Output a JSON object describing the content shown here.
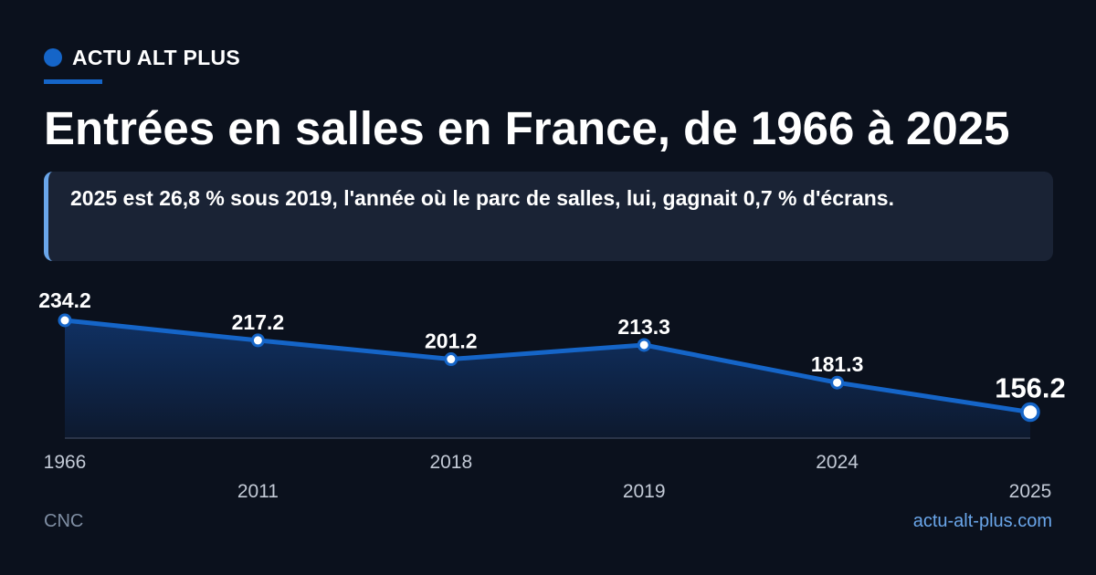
{
  "brand": {
    "name": "ACTU ALT PLUS",
    "accent": "#1565c8"
  },
  "title": "Entrées en salles en France, de 1966 à 2025",
  "callout": "2025 est 26,8 % sous 2019, l'année où le parc de salles, lui, gagnait 0,7 % d'écrans.",
  "footer": {
    "source": "CNC",
    "site": "actu-alt-plus.com"
  },
  "chart_data": {
    "type": "area",
    "categories": [
      "1966",
      "2011",
      "2018",
      "2019",
      "2024",
      "2025"
    ],
    "values": [
      234.2,
      217.2,
      201.2,
      213.3,
      181.3,
      156.2
    ],
    "data_labels": [
      "234.2",
      "217.2",
      "201.2",
      "213.3",
      "181.3",
      "156.2"
    ],
    "highlight_index": 5,
    "ylim": [
      145,
      234.2
    ],
    "grid": false,
    "legend": "none",
    "line_color": "#1565c8",
    "title": "",
    "xlabel": "",
    "ylabel": ""
  }
}
